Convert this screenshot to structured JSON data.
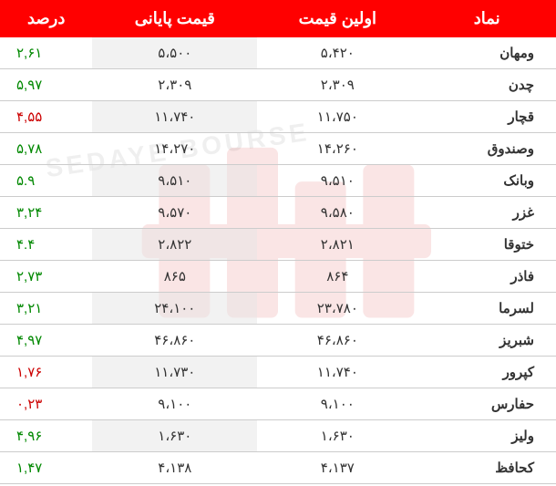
{
  "watermark_text": "SEDAYE BOURSE",
  "headers": {
    "symbol": "نماد",
    "first_price": "اولین قیمت",
    "closing_price": "قیمت پایانی",
    "percent": "درصد"
  },
  "colors": {
    "header_bg": "#ff0000",
    "header_text": "#ffffff",
    "positive": "#008800",
    "negative": "#cc0000",
    "border": "#cccccc",
    "watermark": "#dd3333"
  },
  "rows": [
    {
      "symbol": "ومهان",
      "first": "۵،۴۲۰",
      "close": "۵،۵۰۰",
      "percent": "۲,۶۱",
      "dir": "green"
    },
    {
      "symbol": "چدن",
      "first": "۲،۳۰۹",
      "close": "۲،۳۰۹",
      "percent": "۵,۹۷",
      "dir": "green"
    },
    {
      "symbol": "قچار",
      "first": "۱۱،۷۵۰",
      "close": "۱۱،۷۴۰",
      "percent": "۴,۵۵",
      "dir": "red"
    },
    {
      "symbol": "وصندوق",
      "first": "۱۴،۲۶۰",
      "close": "۱۴،۲۷۰",
      "percent": "۵,۷۸",
      "dir": "green"
    },
    {
      "symbol": "وبانک",
      "first": "۹،۵۱۰",
      "close": "۹،۵۱۰",
      "percent": "۵.۹",
      "dir": "green"
    },
    {
      "symbol": "غزر",
      "first": "۹،۵۸۰",
      "close": "۹،۵۷۰",
      "percent": "۳,۲۴",
      "dir": "green"
    },
    {
      "symbol": "ختوقا",
      "first": "۲،۸۲۱",
      "close": "۲،۸۲۲",
      "percent": "۴.۴",
      "dir": "green"
    },
    {
      "symbol": "فاذر",
      "first": "۸۶۴",
      "close": "۸۶۵",
      "percent": "۲,۷۳",
      "dir": "green"
    },
    {
      "symbol": "لسرما",
      "first": "۲۳،۷۸۰",
      "close": "۲۴،۱۰۰",
      "percent": "۳,۲۱",
      "dir": "green"
    },
    {
      "symbol": "شبریز",
      "first": "۴۶،۸۶۰",
      "close": "۴۶،۸۶۰",
      "percent": "۴,۹۷",
      "dir": "green"
    },
    {
      "symbol": "کپرور",
      "first": "۱۱،۷۴۰",
      "close": "۱۱،۷۳۰",
      "percent": "۱,۷۶",
      "dir": "red"
    },
    {
      "symbol": "حفارس",
      "first": "۹،۱۰۰",
      "close": "۹،۱۰۰",
      "percent": "۰,۲۳",
      "dir": "red"
    },
    {
      "symbol": "ولیز",
      "first": "۱،۶۳۰",
      "close": "۱،۶۳۰",
      "percent": "۴,۹۶",
      "dir": "green"
    },
    {
      "symbol": "کحافظ",
      "first": "۴،۱۳۷",
      "close": "۴،۱۳۸",
      "percent": "۱,۴۷",
      "dir": "green"
    }
  ]
}
